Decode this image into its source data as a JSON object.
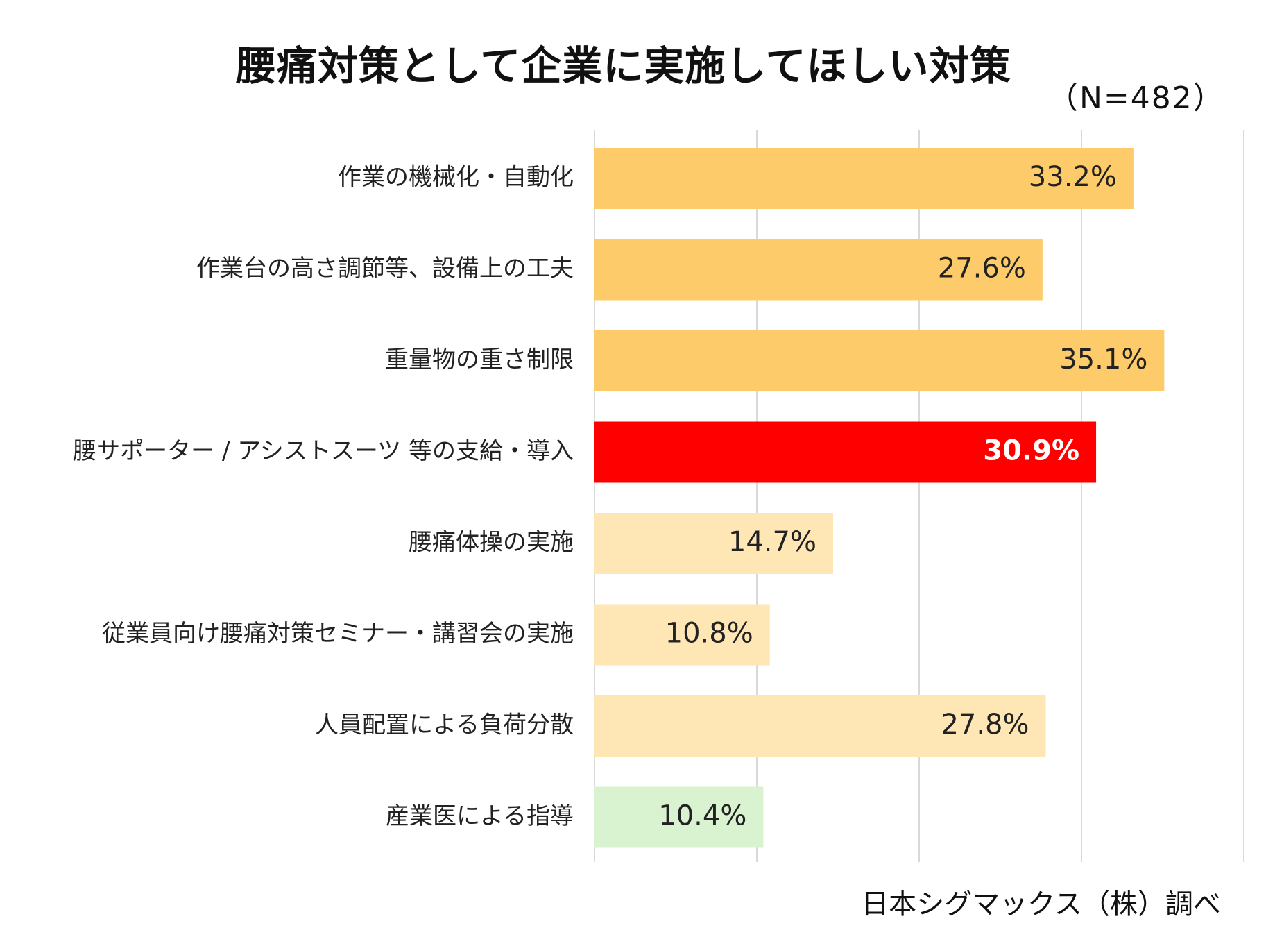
{
  "title": "腰痛対策として企業に実施してほしい対策",
  "sample_size": "（N=482）",
  "source": "日本シグマックス（株）調べ",
  "chart_data": {
    "type": "bar",
    "orientation": "horizontal",
    "title": "腰痛対策として企業に実施してほしい対策",
    "xlabel": "",
    "ylabel": "",
    "xlim": [
      0,
      40
    ],
    "grid": true,
    "categories": [
      "作業の機械化・自動化",
      "作業台の高さ調節等、設備上の工夫",
      "重量物の重さ制限",
      "腰サポーター / アシストスーツ 等の支給・導入",
      "腰痛体操の実施",
      "従業員向け腰痛対策セミナー・講習会の実施",
      "人員配置による負荷分散",
      "産業医による指導"
    ],
    "values": [
      33.2,
      27.6,
      35.1,
      30.9,
      14.7,
      10.8,
      27.8,
      10.4
    ],
    "labels": [
      "33.2%",
      "27.6%",
      "35.1%",
      "30.9%",
      "14.7%",
      "10.8%",
      "27.8%",
      "10.4%"
    ],
    "colors": [
      "#FDCB6A",
      "#FDCB6A",
      "#FDCB6A",
      "#FF0000",
      "#FFE6B5",
      "#FFE6B5",
      "#FFE6B5",
      "#D9F2D0"
    ],
    "label_colors": [
      "#222222",
      "#222222",
      "#222222",
      "#FFFFFF",
      "#222222",
      "#222222",
      "#222222",
      "#222222"
    ],
    "gridline_color": "#D9D9D9"
  }
}
